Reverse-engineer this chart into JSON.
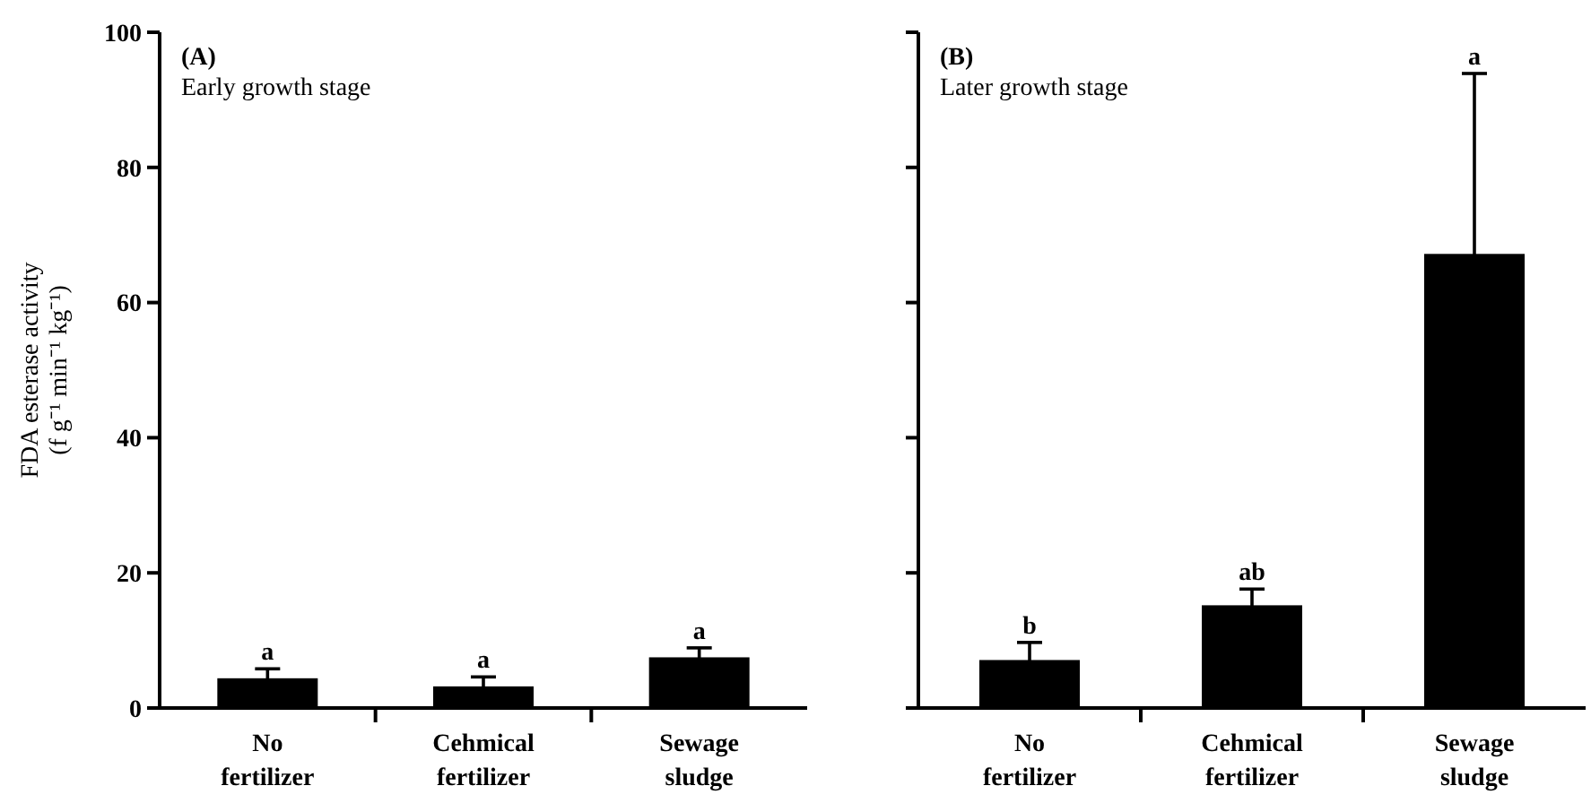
{
  "chart_data": [
    {
      "type": "bar",
      "title": "(A)",
      "subtitle": "Early growth stage",
      "ylabel": "FDA esterase activity\n(f g⁻¹ min⁻¹ kg⁻¹)",
      "categories": [
        "No fertilizer",
        "Cehmical fertilizer",
        "Sewage sludge"
      ],
      "series": [
        {
          "color": "#000000",
          "values": [
            4.4,
            3.2,
            7.5
          ],
          "errors": [
            1.4,
            1.4,
            1.4
          ]
        }
      ],
      "ylim": [
        0,
        100
      ],
      "yticks": [
        0,
        20,
        40,
        60,
        80,
        100
      ],
      "annotations": [
        {
          "text": "a",
          "x": "No fertilizer",
          "y": 5.8
        },
        {
          "text": "a",
          "x": "Cehmical fertilizer",
          "y": 4.6
        },
        {
          "text": "a",
          "x": "Sewage sludge",
          "y": 8.9
        }
      ]
    },
    {
      "type": "bar",
      "title": "(B)",
      "subtitle": "Later growth stage",
      "categories": [
        "No fertilizer",
        "Cehmical fertilizer",
        "Sewage sludge"
      ],
      "series": [
        {
          "color": "#000000",
          "values": [
            7.1,
            15.2,
            67.2
          ],
          "errors": [
            2.6,
            2.4,
            26.7
          ]
        }
      ],
      "ylim": [
        0,
        100
      ],
      "yticks": [
        0,
        20,
        40,
        60,
        80,
        100
      ],
      "tick_labels": "x",
      "annotations": [
        {
          "text": "b",
          "x": "No fertilizer",
          "y": 9.7
        },
        {
          "text": "ab",
          "x": "Cehmical fertilizer",
          "y": 17.6
        },
        {
          "text": "a",
          "x": "Sewage sludge",
          "y": 93.9
        }
      ]
    }
  ]
}
